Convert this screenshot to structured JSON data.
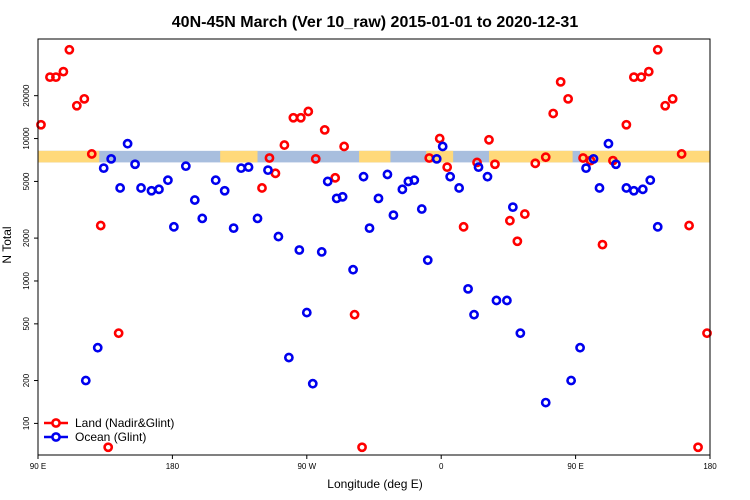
{
  "chart_data": {
    "type": "scatter",
    "title": "40N-45N March (Ver 10_raw)   2015-01-01 to 2020-12-31",
    "xlabel": "Longitude (deg E)",
    "ylabel": "N Total",
    "x_scale": "linear",
    "y_scale": "log",
    "xlim": [
      90,
      540
    ],
    "ylim": [
      60,
      50000
    ],
    "x_ticks": [
      {
        "value": 90,
        "label": "90 E"
      },
      {
        "value": 180,
        "label": "180"
      },
      {
        "value": 270,
        "label": "90 W"
      },
      {
        "value": 360,
        "label": "0"
      },
      {
        "value": 450,
        "label": "90 E"
      },
      {
        "value": 540,
        "label": "180"
      }
    ],
    "y_ticks": [
      {
        "value": 100,
        "label": "100"
      },
      {
        "value": 200,
        "label": "200"
      },
      {
        "value": 500,
        "label": "500"
      },
      {
        "value": 1000,
        "label": "1000"
      },
      {
        "value": 2000,
        "label": "2000"
      },
      {
        "value": 5000,
        "label": "5000"
      },
      {
        "value": 10000,
        "label": "10000"
      },
      {
        "value": 20000,
        "label": "20000"
      }
    ],
    "land_ocean_band": {
      "y_range": [
        6800,
        8200
      ],
      "ocean_color": "#a8bede",
      "land_color": "#ffd97a",
      "land_segments": [
        [
          90,
          131
        ],
        [
          212,
          237
        ],
        [
          305,
          326
        ],
        [
          350,
          368
        ],
        [
          392,
          448
        ],
        [
          453,
          540
        ]
      ]
    },
    "legend_position": "bottom-left",
    "grid": false,
    "series": [
      {
        "name": "Land (Nadir&Glint)",
        "color": "#ff0000",
        "points": [
          [
            92,
            12500
          ],
          [
            98,
            27000
          ],
          [
            102,
            27000
          ],
          [
            107,
            29500
          ],
          [
            111,
            42000
          ],
          [
            116,
            17000
          ],
          [
            121,
            19000
          ],
          [
            126,
            7800
          ],
          [
            132,
            2450
          ],
          [
            137,
            68
          ],
          [
            144,
            430
          ],
          [
            240,
            4500
          ],
          [
            245,
            7300
          ],
          [
            249,
            5700
          ],
          [
            255,
            9000
          ],
          [
            261,
            14000
          ],
          [
            266,
            14000
          ],
          [
            271,
            15500
          ],
          [
            276,
            7200
          ],
          [
            282,
            11500
          ],
          [
            289,
            5300
          ],
          [
            295,
            8800
          ],
          [
            302,
            580
          ],
          [
            307,
            68
          ],
          [
            352,
            7300
          ],
          [
            359,
            10000
          ],
          [
            364,
            6300
          ],
          [
            375,
            2400
          ],
          [
            384,
            6800
          ],
          [
            392,
            9800
          ],
          [
            396,
            6600
          ],
          [
            406,
            2650
          ],
          [
            411,
            1900
          ],
          [
            416,
            2950
          ],
          [
            423,
            6700
          ],
          [
            430,
            7400
          ],
          [
            435,
            15000
          ],
          [
            440,
            25000
          ],
          [
            445,
            19000
          ],
          [
            455,
            7300
          ],
          [
            460,
            7000
          ],
          [
            468,
            1800
          ],
          [
            475,
            7000
          ],
          [
            484,
            12500
          ],
          [
            489,
            27000
          ],
          [
            494,
            27000
          ],
          [
            499,
            29500
          ],
          [
            505,
            42000
          ],
          [
            510,
            17000
          ],
          [
            515,
            19000
          ],
          [
            521,
            7800
          ],
          [
            526,
            2450
          ],
          [
            532,
            68
          ],
          [
            538,
            430
          ]
        ]
      },
      {
        "name": "Ocean (Glint)",
        "color": "#0000ee",
        "points": [
          [
            122,
            200
          ],
          [
            130,
            340
          ],
          [
            134,
            6200
          ],
          [
            139,
            7200
          ],
          [
            145,
            4500
          ],
          [
            150,
            9200
          ],
          [
            155,
            6600
          ],
          [
            159,
            4500
          ],
          [
            166,
            4300
          ],
          [
            171,
            4400
          ],
          [
            177,
            5100
          ],
          [
            181,
            2400
          ],
          [
            189,
            6400
          ],
          [
            195,
            3700
          ],
          [
            200,
            2750
          ],
          [
            209,
            5100
          ],
          [
            215,
            4300
          ],
          [
            221,
            2350
          ],
          [
            226,
            6200
          ],
          [
            231,
            6300
          ],
          [
            237,
            2750
          ],
          [
            244,
            6000
          ],
          [
            251,
            2050
          ],
          [
            258,
            290
          ],
          [
            265,
            1650
          ],
          [
            270,
            600
          ],
          [
            274,
            190
          ],
          [
            280,
            1600
          ],
          [
            284,
            5000
          ],
          [
            290,
            3800
          ],
          [
            294,
            3900
          ],
          [
            301,
            1200
          ],
          [
            308,
            5400
          ],
          [
            312,
            2350
          ],
          [
            318,
            3800
          ],
          [
            324,
            5600
          ],
          [
            328,
            2900
          ],
          [
            334,
            4400
          ],
          [
            338,
            5000
          ],
          [
            342,
            5100
          ],
          [
            347,
            3200
          ],
          [
            351,
            1400
          ],
          [
            357,
            7200
          ],
          [
            361,
            8800
          ],
          [
            366,
            5400
          ],
          [
            372,
            4500
          ],
          [
            378,
            880
          ],
          [
            382,
            580
          ],
          [
            385,
            6300
          ],
          [
            391,
            5400
          ],
          [
            397,
            730
          ],
          [
            404,
            730
          ],
          [
            408,
            3300
          ],
          [
            413,
            430
          ],
          [
            430,
            140
          ],
          [
            447,
            200
          ],
          [
            453,
            340
          ],
          [
            457,
            6200
          ],
          [
            462,
            7200
          ],
          [
            466,
            4500
          ],
          [
            472,
            9200
          ],
          [
            477,
            6600
          ],
          [
            484,
            4500
          ],
          [
            489,
            4300
          ],
          [
            495,
            4400
          ],
          [
            500,
            5100
          ],
          [
            505,
            2400
          ]
        ]
      }
    ]
  }
}
